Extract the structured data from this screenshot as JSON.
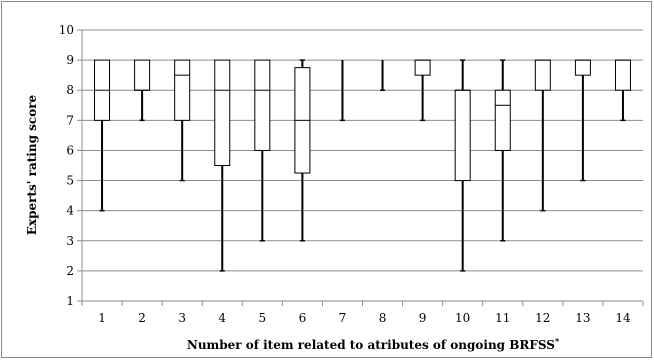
{
  "chart_data": {
    "type": "boxplot",
    "title": "",
    "xlabel": "Number of item related to atributes of ongoing BRFSS",
    "xlabel_superscript": "*",
    "ylabel": "Experts' rating score",
    "ylim": [
      1,
      10
    ],
    "yticks": [
      "1",
      "2",
      "3",
      "4",
      "5",
      "6",
      "7",
      "8",
      "9",
      "10"
    ],
    "grid": "horizontal",
    "categories": [
      "1",
      "2",
      "3",
      "4",
      "5",
      "6",
      "7",
      "8",
      "9",
      "10",
      "11",
      "12",
      "13",
      "14"
    ],
    "boxes": [
      {
        "min": 4,
        "q1": 7,
        "median": 8,
        "q3": 9,
        "max": 9
      },
      {
        "min": 7,
        "q1": 8,
        "median": 8,
        "q3": 9,
        "max": 9
      },
      {
        "min": 5,
        "q1": 7,
        "median": 8.5,
        "q3": 9,
        "max": 9
      },
      {
        "min": 2,
        "q1": 5.5,
        "median": 8,
        "q3": 9,
        "max": 9
      },
      {
        "min": 3,
        "q1": 6,
        "median": 8,
        "q3": 9,
        "max": 9
      },
      {
        "min": 3,
        "q1": 5.25,
        "median": 7,
        "q3": 8.75,
        "max": 9
      },
      {
        "min": 7,
        "q1": 9,
        "median": 9,
        "q3": 9,
        "max": 9
      },
      {
        "min": 8,
        "q1": 9,
        "median": 9,
        "q3": 9,
        "max": 9
      },
      {
        "min": 7,
        "q1": 8.5,
        "median": 9,
        "q3": 9,
        "max": 9
      },
      {
        "min": 2,
        "q1": 5,
        "median": 8,
        "q3": 8,
        "max": 9
      },
      {
        "min": 3,
        "q1": 6,
        "median": 7.5,
        "q3": 8,
        "max": 9
      },
      {
        "min": 4,
        "q1": 8,
        "median": 9,
        "q3": 9,
        "max": 9
      },
      {
        "min": 5,
        "q1": 8.5,
        "median": 9,
        "q3": 9,
        "max": 9
      },
      {
        "min": 7,
        "q1": 8,
        "median": 9,
        "q3": 9,
        "max": 9
      }
    ]
  }
}
